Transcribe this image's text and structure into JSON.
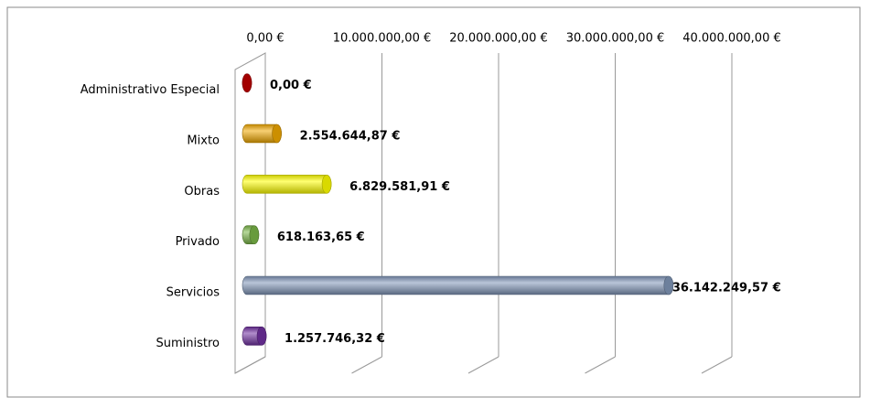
{
  "chart_data": {
    "type": "bar",
    "orientation": "horizontal",
    "categories": [
      "Administrativo Especial",
      "Mixto",
      "Obras",
      "Privado",
      "Servicios",
      "Suministro"
    ],
    "values": [
      0,
      2554644.87,
      6829581.91,
      618163.65,
      36142249.57,
      1257746.32
    ],
    "value_labels": [
      "0,00 €",
      "2.554.644,87 €",
      "6.829.581,91 €",
      "618.163,65 €",
      "36.142.249,57 €",
      "1.257.746,32 €"
    ],
    "colors": [
      "#c00000",
      "#f0a800",
      "#ffff00",
      "#7ab648",
      "#8096b8",
      "#7030a0"
    ],
    "xlim": [
      0,
      40000000
    ],
    "xticks": [
      {
        "value": 0,
        "label": "0,00 €"
      },
      {
        "value": 10000000,
        "label": "10.000.000,00 €"
      },
      {
        "value": 20000000,
        "label": "20.000.000,00 €"
      },
      {
        "value": 30000000,
        "label": "30.000.000,00 €"
      },
      {
        "value": 40000000,
        "label": "40.000.000,00 €"
      }
    ],
    "grid": true
  }
}
